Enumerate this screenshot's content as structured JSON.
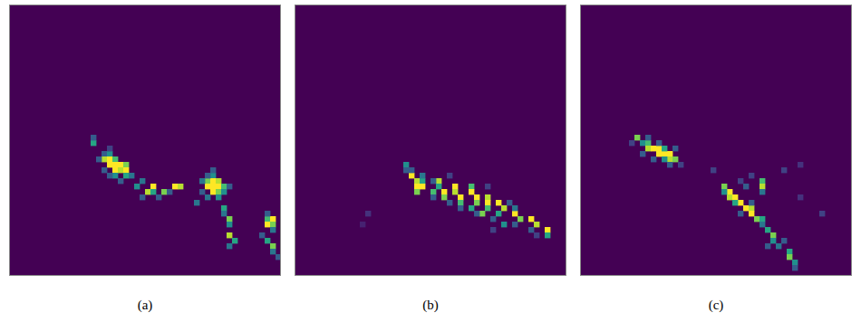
{
  "chart_data": [
    {
      "type": "heatmap",
      "caption": "(a)",
      "size": [
        50,
        50
      ],
      "zlim": [
        0,
        1
      ],
      "tick_labels": false,
      "cells": [
        [
          25,
          15,
          0.6
        ],
        [
          24,
          15,
          0.3
        ],
        [
          27,
          17,
          0.3
        ],
        [
          27,
          18,
          0.5
        ],
        [
          28,
          17,
          0.9
        ],
        [
          28,
          18,
          1
        ],
        [
          28,
          19,
          0.7
        ],
        [
          29,
          18,
          1
        ],
        [
          29,
          19,
          1
        ],
        [
          29,
          20,
          1
        ],
        [
          29,
          21,
          0.8
        ],
        [
          30,
          19,
          1
        ],
        [
          30,
          20,
          0.9
        ],
        [
          30,
          21,
          1
        ],
        [
          31,
          19,
          0.5
        ],
        [
          31,
          21,
          0.6
        ],
        [
          31,
          22,
          0.4
        ],
        [
          28,
          16,
          0.3
        ],
        [
          30,
          17,
          0.3
        ],
        [
          32,
          20,
          0.3
        ],
        [
          26,
          18,
          0.2
        ],
        [
          31,
          18,
          0.3
        ],
        [
          33,
          23,
          0.5
        ],
        [
          32,
          24,
          0.4
        ],
        [
          34,
          25,
          0.9
        ],
        [
          33,
          26,
          1
        ],
        [
          34,
          26,
          0.6
        ],
        [
          34,
          28,
          0.8
        ],
        [
          33,
          30,
          1
        ],
        [
          33,
          31,
          0.9
        ],
        [
          34,
          29,
          0.3
        ],
        [
          35,
          24,
          0.3
        ],
        [
          35,
          27,
          0.3
        ],
        [
          31,
          37,
          0.5
        ],
        [
          32,
          36,
          0.8
        ],
        [
          32,
          37,
          1
        ],
        [
          32,
          38,
          0.9
        ],
        [
          33,
          36,
          1
        ],
        [
          33,
          37,
          1
        ],
        [
          33,
          38,
          1
        ],
        [
          33,
          39,
          0.7
        ],
        [
          34,
          37,
          1
        ],
        [
          34,
          38,
          0.8
        ],
        [
          34,
          39,
          0.5
        ],
        [
          35,
          36,
          0.4
        ],
        [
          35,
          38,
          0.5
        ],
        [
          31,
          36,
          0.3
        ],
        [
          32,
          35,
          0.4
        ],
        [
          34,
          35,
          0.3
        ],
        [
          30,
          37,
          0.3
        ],
        [
          33,
          40,
          0.3
        ],
        [
          36,
          34,
          0.4
        ],
        [
          37,
          39,
          0.6
        ],
        [
          38,
          39,
          0.4
        ],
        [
          39,
          40,
          0.8
        ],
        [
          40,
          40,
          0.5
        ],
        [
          42,
          40,
          0.9
        ],
        [
          43,
          41,
          0.6
        ],
        [
          44,
          40,
          0.4
        ],
        [
          39,
          47,
          0.7
        ],
        [
          39,
          48,
          1
        ],
        [
          40,
          47,
          1
        ],
        [
          40,
          48,
          0.8
        ],
        [
          41,
          48,
          0.4
        ],
        [
          38,
          47,
          0.3
        ],
        [
          43,
          47,
          0.6
        ],
        [
          44,
          48,
          0.8
        ],
        [
          45,
          48,
          0.4
        ],
        [
          42,
          46,
          0.3
        ],
        [
          46,
          49,
          0.3
        ]
      ]
    },
    {
      "type": "heatmap",
      "caption": "(b)",
      "size": [
        50,
        50
      ],
      "zlim": [
        0,
        1
      ],
      "tick_labels": false,
      "cells": [
        [
          29,
          20,
          0.5
        ],
        [
          30,
          20,
          0.3
        ],
        [
          31,
          21,
          1
        ],
        [
          32,
          22,
          0.9
        ],
        [
          32,
          23,
          0.6
        ],
        [
          33,
          22,
          1
        ],
        [
          33,
          23,
          1
        ],
        [
          34,
          22,
          0.8
        ],
        [
          34,
          25,
          0.7
        ],
        [
          32,
          26,
          0.9
        ],
        [
          33,
          26,
          0.6
        ],
        [
          34,
          27,
          1
        ],
        [
          35,
          27,
          0.8
        ],
        [
          33,
          29,
          1
        ],
        [
          34,
          29,
          0.9
        ],
        [
          35,
          30,
          1
        ],
        [
          36,
          30,
          0.7
        ],
        [
          33,
          32,
          0.7
        ],
        [
          34,
          32,
          1
        ],
        [
          35,
          33,
          1
        ],
        [
          36,
          33,
          0.8
        ],
        [
          37,
          32,
          0.6
        ],
        [
          35,
          35,
          0.9
        ],
        [
          36,
          35,
          1
        ],
        [
          37,
          35,
          0.7
        ],
        [
          38,
          34,
          0.8
        ],
        [
          36,
          37,
          1
        ],
        [
          37,
          38,
          0.9
        ],
        [
          38,
          37,
          0.6
        ],
        [
          38,
          40,
          1
        ],
        [
          39,
          41,
          0.8
        ],
        [
          39,
          43,
          1
        ],
        [
          40,
          44,
          0.9
        ],
        [
          41,
          46,
          1
        ],
        [
          42,
          46,
          0.6
        ],
        [
          40,
          38,
          0.5
        ],
        [
          37,
          40,
          0.4
        ],
        [
          30,
          21,
          0.3
        ],
        [
          31,
          23,
          0.4
        ],
        [
          35,
          25,
          0.3
        ],
        [
          36,
          28,
          0.3
        ],
        [
          37,
          30,
          0.3
        ],
        [
          38,
          33,
          0.3
        ],
        [
          39,
          36,
          0.3
        ],
        [
          40,
          40,
          0.3
        ],
        [
          41,
          43,
          0.3
        ],
        [
          32,
          25,
          0.3
        ],
        [
          31,
          28,
          0.2
        ],
        [
          33,
          35,
          0.2
        ],
        [
          42,
          44,
          0.2
        ],
        [
          36,
          39,
          0.3
        ],
        [
          41,
          36,
          0.2
        ],
        [
          40,
          12,
          0.1
        ],
        [
          38,
          13,
          0.15
        ]
      ]
    },
    {
      "type": "heatmap",
      "caption": "(c)",
      "size": [
        50,
        50
      ],
      "zlim": [
        0,
        1
      ],
      "tick_labels": false,
      "cells": [
        [
          24,
          10,
          0.8
        ],
        [
          25,
          11,
          0.5
        ],
        [
          25,
          12,
          0.7
        ],
        [
          26,
          12,
          0.9
        ],
        [
          26,
          13,
          1
        ],
        [
          26,
          14,
          1
        ],
        [
          27,
          14,
          1
        ],
        [
          27,
          15,
          1
        ],
        [
          27,
          16,
          1
        ],
        [
          28,
          16,
          0.9
        ],
        [
          28,
          17,
          0.8
        ],
        [
          26,
          15,
          0.6
        ],
        [
          28,
          15,
          0.5
        ],
        [
          25,
          14,
          0.3
        ],
        [
          24,
          12,
          0.3
        ],
        [
          27,
          11,
          0.3
        ],
        [
          29,
          16,
          0.3
        ],
        [
          26,
          17,
          0.3
        ],
        [
          25,
          9,
          0.2
        ],
        [
          28,
          13,
          0.3
        ],
        [
          29,
          18,
          0.2
        ],
        [
          33,
          26,
          0.8
        ],
        [
          34,
          27,
          1
        ],
        [
          35,
          27,
          0.9
        ],
        [
          35,
          28,
          1
        ],
        [
          36,
          29,
          1
        ],
        [
          37,
          30,
          1
        ],
        [
          37,
          31,
          0.9
        ],
        [
          38,
          31,
          1
        ],
        [
          39,
          32,
          0.8
        ],
        [
          39,
          33,
          0.6
        ],
        [
          32,
          33,
          0.7
        ],
        [
          33,
          33,
          0.9
        ],
        [
          34,
          33,
          0.4
        ],
        [
          36,
          28,
          0.6
        ],
        [
          34,
          26,
          0.5
        ],
        [
          32,
          29,
          0.2
        ],
        [
          31,
          31,
          0.2
        ],
        [
          33,
          30,
          0.3
        ],
        [
          36,
          31,
          0.3
        ],
        [
          38,
          29,
          0.3
        ],
        [
          40,
          33,
          0.4
        ],
        [
          41,
          34,
          0.6
        ],
        [
          42,
          35,
          0.8
        ],
        [
          43,
          35,
          0.5
        ],
        [
          44,
          36,
          0.4
        ],
        [
          45,
          38,
          0.6
        ],
        [
          46,
          38,
          0.8
        ],
        [
          47,
          39,
          0.5
        ],
        [
          43,
          37,
          0.3
        ],
        [
          44,
          34,
          0.3
        ],
        [
          48,
          39,
          0.3
        ],
        [
          30,
          37,
          0.2
        ],
        [
          29,
          40,
          0.15
        ],
        [
          35,
          40,
          0.15
        ],
        [
          38,
          44,
          0.2
        ],
        [
          30,
          24,
          0.2
        ]
      ]
    }
  ]
}
